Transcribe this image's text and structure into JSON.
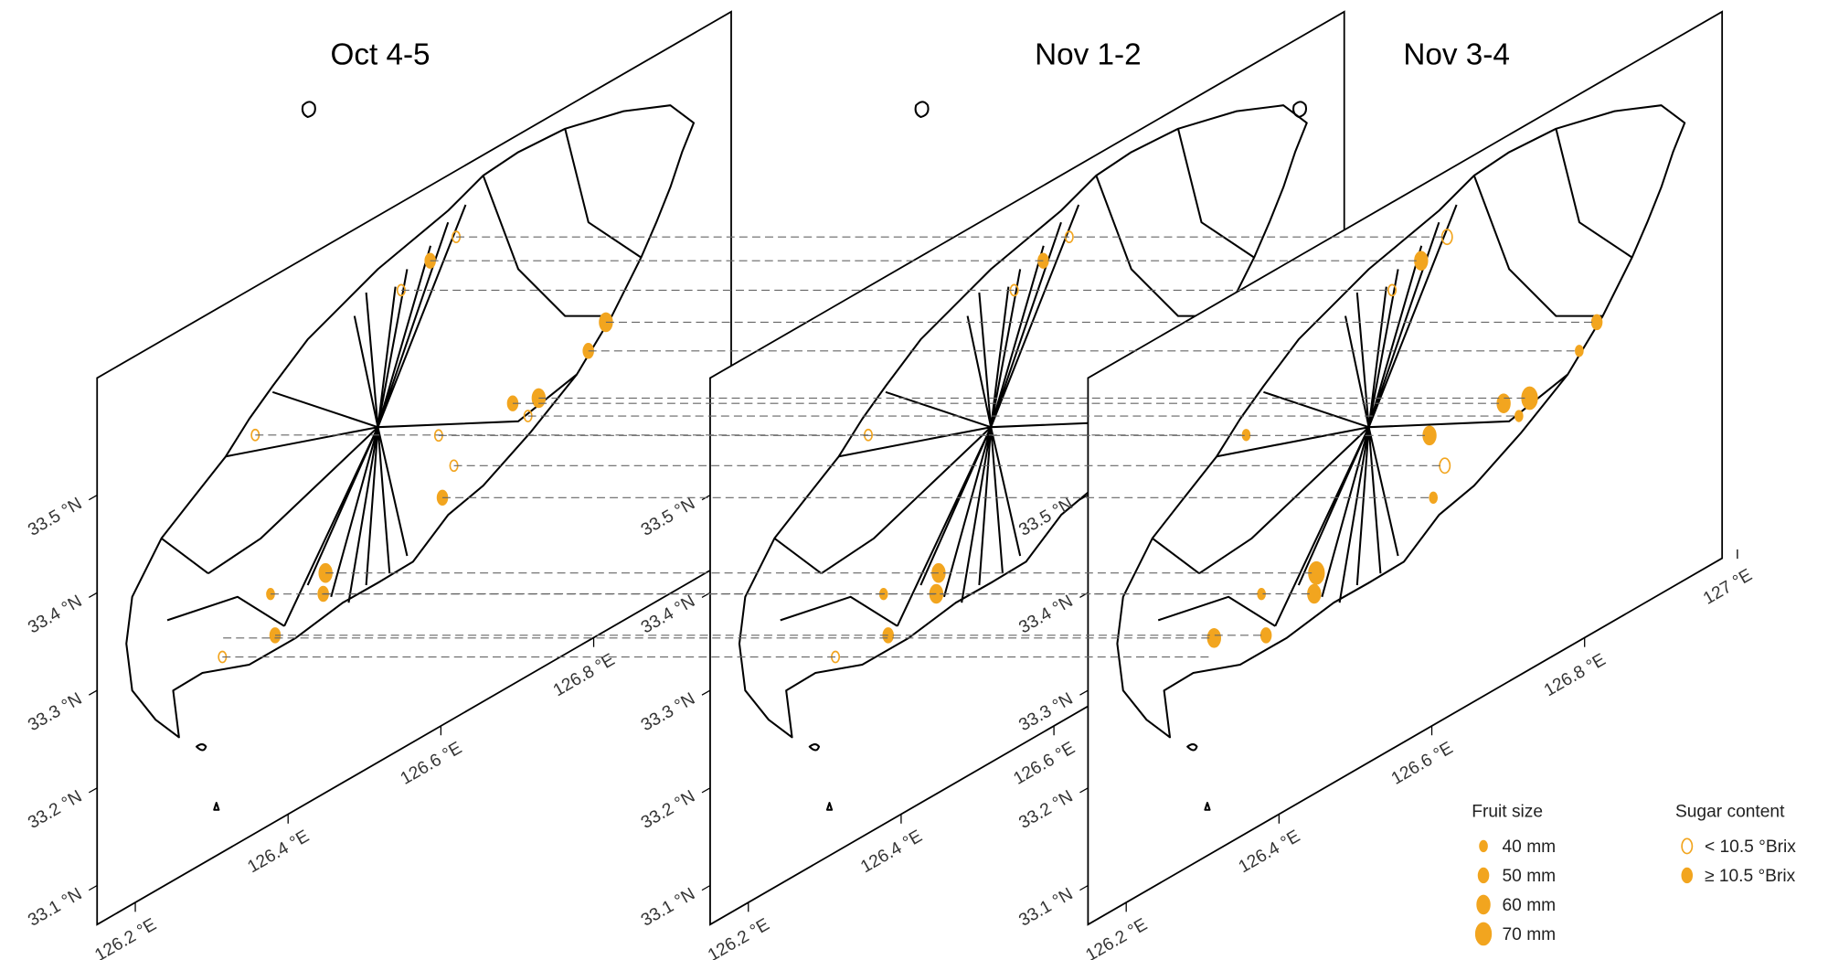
{
  "chart_data": {
    "type": "map",
    "xlim": [
      126.15,
      126.98
    ],
    "ylim": [
      33.06,
      33.62
    ],
    "xticks": [
      {
        "value": 126.2,
        "label": "126.2 °E"
      },
      {
        "value": 126.4,
        "label": "126.4 °E"
      },
      {
        "value": 126.6,
        "label": "126.6 °E"
      },
      {
        "value": 126.8,
        "label": "126.8 °E"
      },
      {
        "value": 127,
        "label": "127 °E"
      }
    ],
    "yticks": [
      {
        "value": 33.1,
        "label": "33.1 °N"
      },
      {
        "value": 33.2,
        "label": "33.2 °N"
      },
      {
        "value": 33.3,
        "label": "33.3 °N"
      },
      {
        "value": 33.4,
        "label": "33.4 °N"
      },
      {
        "value": 33.5,
        "label": "33.5 °N"
      }
    ],
    "color": "#f2a51f",
    "sites": {
      "lon": [
        126.586,
        126.62,
        126.548,
        126.816,
        126.793,
        126.694,
        126.728,
        126.714,
        126.597,
        126.357,
        126.617,
        126.602,
        126.449,
        126.446,
        126.377,
        126.383,
        126.315,
        126.314
      ],
      "lat": [
        33.543,
        33.552,
        33.53,
        33.376,
        33.357,
        33.348,
        33.338,
        33.326,
        33.359,
        33.468,
        33.319,
        33.293,
        33.285,
        33.265,
        33.296,
        33.251,
        33.279,
        33.26
      ]
    },
    "panels": [
      {
        "title": "Oct 4-5",
        "size": [
          50,
          40,
          40,
          60,
          50,
          50,
          60,
          40,
          40,
          40,
          40,
          50,
          60,
          50,
          40,
          50,
          null,
          40
        ],
        "high_brix": [
          true,
          false,
          false,
          true,
          true,
          true,
          true,
          false,
          false,
          false,
          false,
          true,
          true,
          true,
          true,
          true,
          null,
          false
        ]
      },
      {
        "title": "Nov 1-2",
        "size": [
          50,
          40,
          40,
          null,
          null,
          null,
          null,
          null,
          null,
          40,
          null,
          null,
          60,
          60,
          40,
          50,
          null,
          40
        ],
        "high_brix": [
          true,
          false,
          false,
          null,
          null,
          null,
          null,
          null,
          null,
          false,
          null,
          null,
          true,
          true,
          true,
          true,
          null,
          false
        ]
      },
      {
        "title": "Nov 3-4",
        "size": [
          60,
          50,
          40,
          50,
          40,
          60,
          70,
          40,
          60,
          40,
          50,
          40,
          70,
          60,
          40,
          50,
          60,
          null
        ],
        "high_brix": [
          true,
          false,
          false,
          true,
          true,
          true,
          true,
          true,
          true,
          true,
          false,
          true,
          true,
          true,
          true,
          true,
          true,
          null
        ]
      }
    ],
    "legend": {
      "size_title": "Fruit size",
      "sizes": [
        {
          "value": 40,
          "label": "40 mm"
        },
        {
          "value": 50,
          "label": "50 mm"
        },
        {
          "value": 60,
          "label": "60 mm"
        },
        {
          "value": 70,
          "label": "70 mm"
        }
      ],
      "sugar_title": "Sugar content",
      "sugar_labels": [
        "< 10.5 °Brix",
        "≥ 10.5 °Brix"
      ]
    }
  }
}
